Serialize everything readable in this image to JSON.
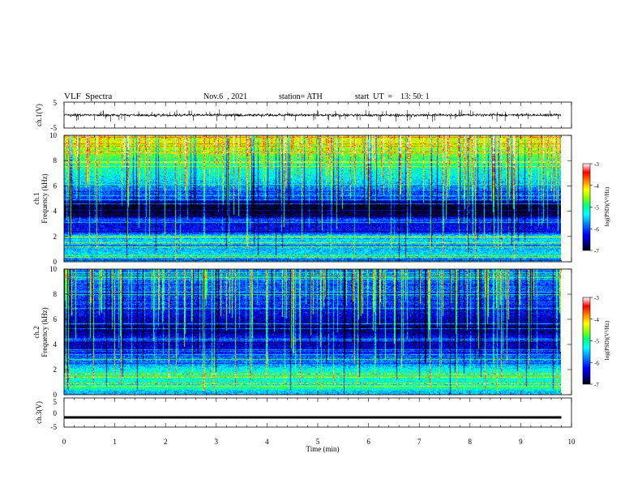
{
  "header": {
    "title": "VLF  Spectra",
    "date": "Nov.6  , 2021",
    "station": "station= ATH",
    "start": "start  UT  =    13: 50: 1"
  },
  "chart_data": [
    {
      "type": "line",
      "id": "ch1-waveform",
      "ylabel": "ch.1(V)",
      "ylim": [
        -5,
        5
      ],
      "yticks": [
        5,
        -5
      ],
      "xlim": [
        0,
        10
      ],
      "x_extent": [
        0,
        9.8
      ],
      "baseline": 0.0,
      "amplitude_band": [
        -1.2,
        1.2
      ],
      "spike_range": [
        -2.6,
        2.2
      ],
      "color": "#000000"
    },
    {
      "type": "heatmap",
      "id": "ch1-spectrogram",
      "ylabel_lines": [
        "ch.1",
        "Frequency  (kHz)"
      ],
      "ylim": [
        0,
        10
      ],
      "yticks": [
        0,
        2,
        4,
        6,
        8,
        10
      ],
      "xlim": [
        0,
        10
      ],
      "x_extent": [
        0,
        9.8
      ],
      "colorbar": {
        "label": "log(PSD)(V²/Hz)",
        "range": [
          -7,
          -3
        ],
        "ticks": [
          -3,
          -4,
          -5,
          -6,
          -7
        ],
        "colormap": [
          "#000000",
          "#00007a",
          "#0000ff",
          "#0090ff",
          "#00ffff",
          "#00ff80",
          "#80ff00",
          "#ffff00",
          "#ff8000",
          "#ff0000",
          "#ffffff"
        ]
      },
      "frequency_profile_kHz": [
        [
          0,
          -6.0
        ],
        [
          0.5,
          -5.4
        ],
        [
          1.0,
          -5.6
        ],
        [
          1.5,
          -5.5
        ],
        [
          2.0,
          -5.3
        ],
        [
          2.3,
          -6.2
        ],
        [
          3.0,
          -6.4
        ],
        [
          3.3,
          -5.9
        ],
        [
          3.6,
          -6.7
        ],
        [
          4.0,
          -7.0
        ],
        [
          4.6,
          -6.9
        ],
        [
          5.0,
          -6.1
        ],
        [
          5.8,
          -5.8
        ],
        [
          6.5,
          -5.4
        ],
        [
          7.5,
          -5.1
        ],
        [
          8.5,
          -4.7
        ],
        [
          9.3,
          -4.4
        ],
        [
          10,
          -4.2
        ]
      ]
    },
    {
      "type": "heatmap",
      "id": "ch2-spectrogram",
      "ylabel_lines": [
        "ch.2",
        "Frequency  (kHz)"
      ],
      "ylim": [
        0,
        10
      ],
      "yticks": [
        0,
        2,
        4,
        6,
        8,
        10
      ],
      "xlim": [
        0,
        10
      ],
      "x_extent": [
        0,
        9.8
      ],
      "colorbar": {
        "label": "log(PSD)(V²/Hz)",
        "range": [
          -7,
          -3
        ],
        "ticks": [
          -3,
          -4,
          -5,
          -6,
          -7
        ],
        "colormap": [
          "#000000",
          "#00007a",
          "#0000ff",
          "#0090ff",
          "#00ffff",
          "#00ff80",
          "#80ff00",
          "#ffff00",
          "#ff8000",
          "#ff0000",
          "#ffffff"
        ]
      },
      "frequency_profile_kHz": [
        [
          0,
          -5.6
        ],
        [
          0.5,
          -5.0
        ],
        [
          1.0,
          -5.2
        ],
        [
          1.5,
          -5.0
        ],
        [
          2.0,
          -5.3
        ],
        [
          2.5,
          -5.8
        ],
        [
          3.0,
          -5.9
        ],
        [
          3.5,
          -6.4
        ],
        [
          4.0,
          -6.5
        ],
        [
          4.5,
          -6.2
        ],
        [
          5.0,
          -6.7
        ],
        [
          6.0,
          -6.5
        ],
        [
          7.0,
          -6.1
        ],
        [
          8.0,
          -6.0
        ],
        [
          9.0,
          -5.9
        ],
        [
          10,
          -5.8
        ]
      ]
    },
    {
      "type": "line",
      "id": "ch3-waveform",
      "ylabel": "ch.3(V)",
      "ylim": [
        -5,
        5
      ],
      "yticks": [
        5,
        0,
        -5
      ],
      "xlim": [
        0,
        10
      ],
      "x_extent": [
        0,
        9.8
      ],
      "baseline": -1.5,
      "amplitude_band": [
        -0.25,
        0.25
      ],
      "color": "#000000",
      "xlabel": "Time  (min)",
      "xticks": [
        0,
        1,
        2,
        3,
        4,
        5,
        6,
        7,
        8,
        9,
        10
      ]
    }
  ]
}
